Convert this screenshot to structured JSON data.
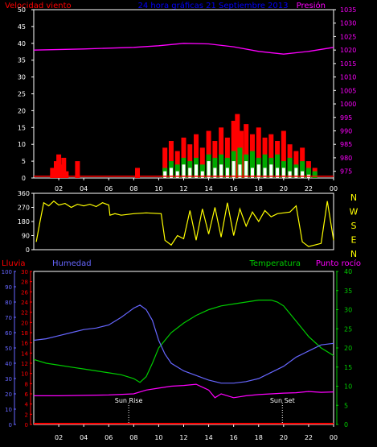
{
  "header": {
    "left_label": "Velocidad viento",
    "center_label": "24 hora gráficas  21 Septiembre 2013",
    "right_label": "Presión"
  },
  "colors": {
    "background": "#000000",
    "wind": "#ff0000",
    "gust": "#00aa00",
    "wind_light": "#ffffff",
    "pressure": "#ff00ff",
    "direction": "#ffff00",
    "rain": "#ff0000",
    "humidity": "#6666ff",
    "temperature": "#00cc00",
    "dewpoint": "#ff00ff",
    "axis_label": "#ffffff",
    "title": "#0000ff"
  },
  "chart_data": [
    {
      "id": "wind-pressure",
      "type": "line",
      "left_axis": {
        "label": "Velocidad viento",
        "ticks": [
          0,
          5,
          10,
          15,
          20,
          25,
          30,
          35,
          40,
          45,
          50
        ],
        "range": [
          0,
          50
        ]
      },
      "right_axis": {
        "label": "Presión",
        "ticks": [
          975,
          980,
          985,
          990,
          995,
          1000,
          1005,
          1010,
          1015,
          1020,
          1025,
          1030,
          1035
        ],
        "range": [
          972.5,
          1035
        ]
      },
      "x_ticks": [
        "02",
        "04",
        "06",
        "08",
        "10",
        "12",
        "14",
        "16",
        "18",
        "20",
        "22",
        "00"
      ],
      "pressure": {
        "x": [
          0,
          4,
          8,
          10,
          12,
          14,
          16,
          18,
          20,
          22,
          24
        ],
        "y": [
          1020,
          1020.4,
          1021,
          1021.6,
          1022.5,
          1022.3,
          1021.2,
          1019.5,
          1018.5,
          1019.5,
          1021
        ]
      },
      "wind": {
        "x": [
          1.5,
          1.8,
          2.0,
          2.2,
          2.4,
          2.6,
          3.5,
          8.3,
          10.5,
          11.0,
          11.5,
          12.0,
          12.5,
          13.0,
          13.5,
          14.0,
          14.5,
          15.0,
          15.5,
          16.0,
          16.3,
          16.6,
          17.0,
          17.5,
          18.0,
          18.5,
          19.0,
          19.5,
          20.0,
          20.5,
          21.0,
          21.5,
          22.0,
          22.5
        ],
        "y": [
          3,
          5,
          7,
          4,
          6,
          2,
          5,
          3,
          9,
          11,
          8,
          12,
          10,
          13,
          9,
          14,
          11,
          15,
          12,
          17,
          19,
          14,
          16,
          13,
          15,
          12,
          13,
          11,
          14,
          10,
          8,
          9,
          5,
          3
        ]
      },
      "gust": {
        "x": [
          10.5,
          11.0,
          11.5,
          12.0,
          12.5,
          13.0,
          13.5,
          14.0,
          14.5,
          15.0,
          15.5,
          16.0,
          16.5,
          17.0,
          17.5,
          18.0,
          18.5,
          19.0,
          19.5,
          20.0,
          20.5,
          21.0,
          21.5,
          22.0,
          22.5
        ],
        "y": [
          3,
          5,
          4,
          6,
          5,
          6,
          4,
          7,
          6,
          7,
          6,
          8,
          9,
          7,
          8,
          6,
          7,
          6,
          7,
          5,
          6,
          4,
          5,
          3,
          2
        ]
      },
      "wind_light": {
        "x": [
          10.5,
          11.0,
          11.5,
          12.0,
          12.5,
          13.0,
          13.5,
          14.0,
          14.5,
          15.0,
          15.5,
          16.0,
          16.5,
          17.0,
          17.5,
          18.0,
          18.5,
          19.0,
          19.5,
          20.0,
          20.5,
          21.0,
          21.5,
          22.0
        ],
        "y": [
          2,
          3,
          2,
          4,
          3,
          4,
          2,
          5,
          3,
          4,
          3,
          5,
          4,
          5,
          3,
          4,
          3,
          4,
          3,
          3,
          2,
          3,
          2,
          1
        ]
      }
    },
    {
      "id": "wind-direction",
      "type": "line",
      "left_axis": {
        "ticks": [
          0,
          90,
          180,
          270,
          360
        ],
        "range": [
          0,
          360
        ]
      },
      "right_labels": [
        "N",
        "W",
        "S",
        "E",
        "N"
      ],
      "direction": {
        "x": [
          0.2,
          0.5,
          0.8,
          1.2,
          1.6,
          2.0,
          2.5,
          3.0,
          3.5,
          4.0,
          4.5,
          5.0,
          5.5,
          6.0,
          6.1,
          6.5,
          7.0,
          8.0,
          9.0,
          10.2,
          10.5,
          11.0,
          11.5,
          12.0,
          12.5,
          13.0,
          13.5,
          14.0,
          14.5,
          15.0,
          15.5,
          16.0,
          16.5,
          17.0,
          17.5,
          18.0,
          18.5,
          19.0,
          19.5,
          20.0,
          20.5,
          21.0,
          21.5,
          22.0,
          22.5,
          23.0,
          23.5,
          24.0
        ],
        "y": [
          50,
          180,
          300,
          280,
          310,
          285,
          295,
          270,
          290,
          280,
          290,
          275,
          300,
          285,
          220,
          230,
          220,
          230,
          235,
          230,
          60,
          30,
          90,
          70,
          250,
          60,
          260,
          100,
          270,
          80,
          300,
          90,
          260,
          150,
          240,
          180,
          250,
          210,
          230,
          235,
          240,
          280,
          50,
          20,
          30,
          40,
          310,
          60
        ]
      }
    },
    {
      "id": "humidity-temperature",
      "type": "line",
      "left_axis": {
        "label": "Humedad",
        "ticks": [
          0,
          10,
          20,
          30,
          40,
          50,
          60,
          70,
          80,
          90,
          100
        ],
        "range": [
          0,
          100
        ]
      },
      "rain_axis": {
        "label": "Lluvia",
        "ticks": [
          0,
          2,
          4,
          6,
          8,
          10,
          12,
          14,
          16,
          18,
          20,
          22,
          24,
          26,
          28,
          30
        ],
        "range": [
          0,
          30
        ]
      },
      "right_axis": {
        "label": "Temperatura",
        "ticks": [
          0,
          5,
          10,
          15,
          20,
          25,
          30,
          35,
          40
        ],
        "range": [
          0,
          40
        ]
      },
      "dewpoint_label": "Punto rocío",
      "x_ticks": [
        "02",
        "04",
        "06",
        "08",
        "10",
        "12",
        "14",
        "16",
        "18",
        "20",
        "22",
        "00"
      ],
      "events": [
        {
          "label": "Sun Rise",
          "x": 7.6
        },
        {
          "label": "Sun Set",
          "x": 19.9
        }
      ],
      "humidity": {
        "x": [
          0,
          1,
          2,
          3,
          4,
          5,
          6,
          7,
          7.5,
          8,
          8.5,
          9,
          9.5,
          10,
          10.5,
          11,
          12,
          13,
          14,
          15,
          16,
          17,
          18,
          19,
          20,
          21,
          22,
          23,
          24
        ],
        "y": [
          55,
          56,
          58,
          60,
          62,
          63,
          65,
          70,
          73,
          76,
          78,
          75,
          68,
          55,
          46,
          40,
          35,
          32,
          29,
          27,
          27,
          28,
          30,
          34,
          38,
          44,
          48,
          52,
          53
        ]
      },
      "temperature": {
        "x": [
          0,
          1,
          2,
          3,
          4,
          5,
          6,
          7,
          8,
          8.5,
          9,
          9.5,
          10,
          10.5,
          11,
          12,
          13,
          14,
          15,
          16,
          17,
          18,
          19,
          19.5,
          20,
          20.5,
          21,
          22,
          23,
          24
        ],
        "y": [
          17,
          16,
          15.5,
          15,
          14.5,
          14,
          13.5,
          13,
          12,
          11,
          12.5,
          16,
          20,
          22,
          24,
          26.5,
          28.5,
          30,
          31,
          31.5,
          32,
          32.5,
          32.5,
          32,
          31,
          29,
          27,
          23,
          20,
          18
        ]
      },
      "dewpoint": {
        "x": [
          0,
          2,
          4,
          6,
          8,
          9,
          10,
          11,
          12,
          13,
          14,
          14.5,
          15,
          16,
          17,
          18,
          19,
          20,
          21,
          22,
          23,
          24
        ],
        "y": [
          7.5,
          7.5,
          7.6,
          7.7,
          8,
          9,
          9.5,
          10,
          10.2,
          10.5,
          9,
          7,
          8,
          7,
          7.5,
          7.8,
          8,
          8.2,
          8.3,
          8.6,
          8.4,
          8.5
        ]
      },
      "rain": {
        "x": [
          0,
          24
        ],
        "y": [
          0,
          0
        ]
      }
    }
  ]
}
